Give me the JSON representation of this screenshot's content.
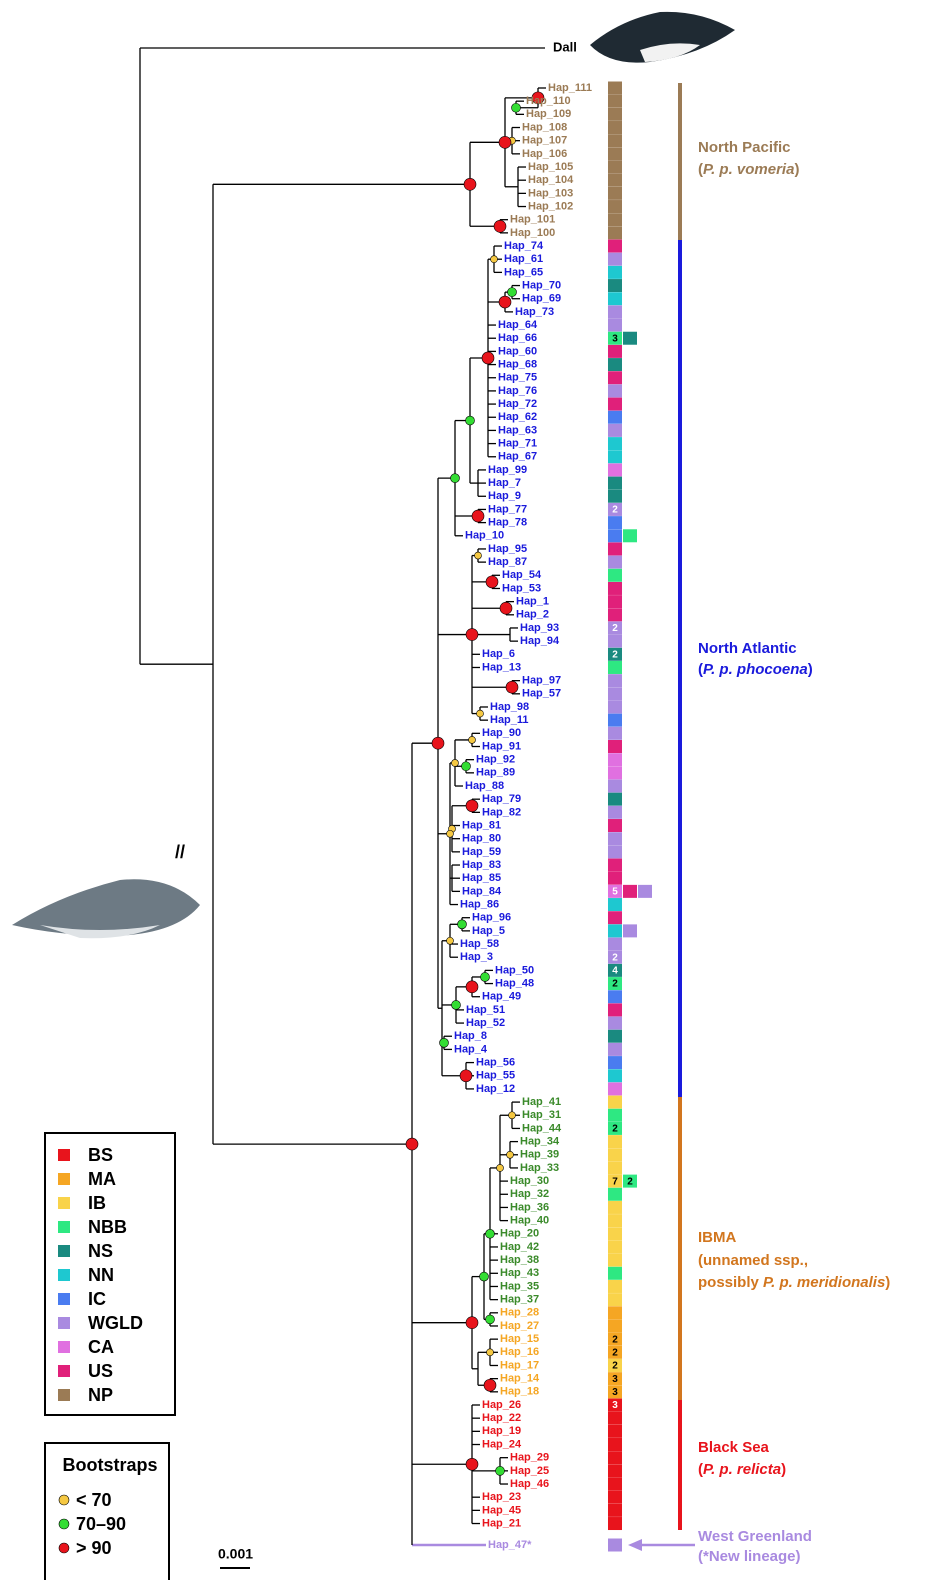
{
  "outgroup": "Dall",
  "groups": [
    {
      "color": "#9b7b55",
      "leaves": [
        {
          "label": "Hap_111",
          "boxes": [
            {
              "region": "NP"
            }
          ]
        },
        {
          "label": "Hap_110",
          "boxes": [
            {
              "region": "NP"
            }
          ]
        },
        {
          "label": "Hap_109",
          "boxes": [
            {
              "region": "NP"
            }
          ]
        },
        {
          "label": "Hap_108",
          "boxes": [
            {
              "region": "NP"
            }
          ]
        },
        {
          "label": "Hap_107",
          "boxes": [
            {
              "region": "NP"
            }
          ]
        },
        {
          "label": "Hap_106",
          "boxes": [
            {
              "region": "NP"
            }
          ]
        },
        {
          "label": "Hap_105",
          "boxes": [
            {
              "region": "NP"
            }
          ]
        },
        {
          "label": "Hap_104",
          "boxes": [
            {
              "region": "NP"
            }
          ]
        },
        {
          "label": "Hap_103",
          "boxes": [
            {
              "region": "NP"
            }
          ]
        },
        {
          "label": "Hap_102",
          "boxes": [
            {
              "region": "NP"
            }
          ]
        },
        {
          "label": "Hap_101",
          "boxes": [
            {
              "region": "NP"
            }
          ]
        },
        {
          "label": "Hap_100",
          "boxes": [
            {
              "region": "NP"
            }
          ]
        }
      ]
    },
    {
      "color": "#1a1adc",
      "leaves": [
        {
          "label": "Hap_74",
          "boxes": [
            {
              "region": "US"
            }
          ]
        },
        {
          "label": "Hap_61",
          "boxes": [
            {
              "region": "WGLD"
            }
          ]
        },
        {
          "label": "Hap_65",
          "boxes": [
            {
              "region": "NN"
            }
          ]
        },
        {
          "label": "Hap_70",
          "boxes": [
            {
              "region": "NS"
            }
          ]
        },
        {
          "label": "Hap_69",
          "boxes": [
            {
              "region": "NN"
            }
          ]
        },
        {
          "label": "Hap_73",
          "boxes": [
            {
              "region": "WGLD"
            }
          ]
        },
        {
          "label": "Hap_64",
          "boxes": [
            {
              "region": "WGLD"
            }
          ]
        },
        {
          "label": "Hap_66",
          "boxes": [
            {
              "region": "NBB",
              "count": 3
            },
            {
              "region": "NS"
            }
          ]
        },
        {
          "label": "Hap_60",
          "boxes": [
            {
              "region": "US"
            }
          ]
        },
        {
          "label": "Hap_68",
          "boxes": [
            {
              "region": "NS"
            }
          ]
        },
        {
          "label": "Hap_75",
          "boxes": [
            {
              "region": "US"
            }
          ]
        },
        {
          "label": "Hap_76",
          "boxes": [
            {
              "region": "WGLD"
            }
          ]
        },
        {
          "label": "Hap_72",
          "boxes": [
            {
              "region": "US"
            }
          ]
        },
        {
          "label": "Hap_62",
          "boxes": [
            {
              "region": "IC"
            }
          ]
        },
        {
          "label": "Hap_63",
          "boxes": [
            {
              "region": "WGLD"
            }
          ]
        },
        {
          "label": "Hap_71",
          "boxes": [
            {
              "region": "NN"
            }
          ]
        },
        {
          "label": "Hap_67",
          "boxes": [
            {
              "region": "NN"
            }
          ]
        },
        {
          "label": "Hap_99",
          "boxes": [
            {
              "region": "CA"
            }
          ]
        },
        {
          "label": "Hap_7",
          "boxes": [
            {
              "region": "NS"
            }
          ]
        },
        {
          "label": "Hap_9",
          "boxes": [
            {
              "region": "NS"
            }
          ]
        },
        {
          "label": "Hap_77",
          "boxes": [
            {
              "region": "WGLD",
              "count": 2
            }
          ]
        },
        {
          "label": "Hap_78",
          "boxes": [
            {
              "region": "IC"
            }
          ]
        },
        {
          "label": "Hap_10",
          "boxes": [
            {
              "region": "IC"
            },
            {
              "region": "NBB"
            }
          ]
        },
        {
          "label": "Hap_95",
          "boxes": [
            {
              "region": "US"
            }
          ]
        },
        {
          "label": "Hap_87",
          "boxes": [
            {
              "region": "WGLD"
            }
          ]
        },
        {
          "label": "Hap_54",
          "boxes": [
            {
              "region": "NBB"
            }
          ]
        },
        {
          "label": "Hap_53",
          "boxes": [
            {
              "region": "US"
            }
          ]
        },
        {
          "label": "Hap_1",
          "boxes": [
            {
              "region": "US"
            }
          ]
        },
        {
          "label": "Hap_2",
          "boxes": [
            {
              "region": "US"
            }
          ]
        },
        {
          "label": "Hap_93",
          "boxes": [
            {
              "region": "WGLD",
              "count": 2
            }
          ]
        },
        {
          "label": "Hap_94",
          "boxes": [
            {
              "region": "WGLD"
            }
          ]
        },
        {
          "label": "Hap_6",
          "boxes": [
            {
              "region": "NS",
              "count": 2
            }
          ]
        },
        {
          "label": "Hap_13",
          "boxes": [
            {
              "region": "NBB"
            }
          ]
        },
        {
          "label": "Hap_97",
          "boxes": [
            {
              "region": "WGLD"
            }
          ]
        },
        {
          "label": "Hap_57",
          "boxes": [
            {
              "region": "WGLD"
            }
          ]
        },
        {
          "label": "Hap_98",
          "boxes": [
            {
              "region": "WGLD"
            }
          ]
        },
        {
          "label": "Hap_11",
          "boxes": [
            {
              "region": "IC"
            }
          ]
        },
        {
          "label": "Hap_90",
          "boxes": [
            {
              "region": "WGLD"
            }
          ]
        },
        {
          "label": "Hap_91",
          "boxes": [
            {
              "region": "US"
            }
          ]
        },
        {
          "label": "Hap_92",
          "boxes": [
            {
              "region": "CA"
            }
          ]
        },
        {
          "label": "Hap_89",
          "boxes": [
            {
              "region": "CA"
            }
          ]
        },
        {
          "label": "Hap_88",
          "boxes": [
            {
              "region": "WGLD"
            }
          ]
        },
        {
          "label": "Hap_79",
          "boxes": [
            {
              "region": "NS"
            }
          ]
        },
        {
          "label": "Hap_82",
          "boxes": [
            {
              "region": "WGLD"
            }
          ]
        },
        {
          "label": "Hap_81",
          "boxes": [
            {
              "region": "US"
            }
          ]
        },
        {
          "label": "Hap_80",
          "boxes": [
            {
              "region": "WGLD"
            }
          ]
        },
        {
          "label": "Hap_59",
          "boxes": [
            {
              "region": "WGLD"
            }
          ]
        },
        {
          "label": "Hap_83",
          "boxes": [
            {
              "region": "US"
            }
          ]
        },
        {
          "label": "Hap_85",
          "boxes": [
            {
              "region": "US"
            }
          ]
        },
        {
          "label": "Hap_84",
          "boxes": [
            {
              "region": "CA",
              "count": 5
            },
            {
              "region": "US"
            },
            {
              "region": "WGLD"
            }
          ]
        },
        {
          "label": "Hap_86",
          "boxes": [
            {
              "region": "NN"
            }
          ]
        },
        {
          "label": "Hap_96",
          "boxes": [
            {
              "region": "US"
            }
          ]
        },
        {
          "label": "Hap_5",
          "boxes": [
            {
              "region": "NN"
            },
            {
              "region": "WGLD"
            }
          ]
        },
        {
          "label": "Hap_58",
          "boxes": [
            {
              "region": "WGLD"
            }
          ]
        },
        {
          "label": "Hap_3",
          "boxes": [
            {
              "region": "WGLD",
              "count": 2
            }
          ]
        },
        {
          "label": "Hap_50",
          "boxes": [
            {
              "region": "NS",
              "count": 4
            }
          ]
        },
        {
          "label": "Hap_48",
          "boxes": [
            {
              "region": "NBB",
              "count": 2
            }
          ]
        },
        {
          "label": "Hap_49",
          "boxes": [
            {
              "region": "IC"
            }
          ]
        },
        {
          "label": "Hap_51",
          "boxes": [
            {
              "region": "US"
            }
          ]
        },
        {
          "label": "Hap_52",
          "boxes": [
            {
              "region": "WGLD"
            }
          ]
        },
        {
          "label": "Hap_8",
          "boxes": [
            {
              "region": "NS"
            }
          ]
        },
        {
          "label": "Hap_4",
          "boxes": [
            {
              "region": "WGLD"
            }
          ]
        },
        {
          "label": "Hap_56",
          "boxes": [
            {
              "region": "IC"
            }
          ]
        },
        {
          "label": "Hap_55",
          "boxes": [
            {
              "region": "NN"
            }
          ]
        },
        {
          "label": "Hap_12",
          "boxes": [
            {
              "region": "CA"
            }
          ]
        }
      ]
    },
    {
      "color": "#3a8a2a",
      "leaves": [
        {
          "label": "Hap_41",
          "boxes": [
            {
              "region": "IB"
            }
          ]
        },
        {
          "label": "Hap_31",
          "boxes": [
            {
              "region": "NBB"
            }
          ]
        },
        {
          "label": "Hap_44",
          "boxes": [
            {
              "region": "NBB",
              "count": 2
            }
          ]
        },
        {
          "label": "Hap_34",
          "boxes": [
            {
              "region": "IB"
            }
          ]
        },
        {
          "label": "Hap_39",
          "boxes": [
            {
              "region": "IB"
            }
          ]
        },
        {
          "label": "Hap_33",
          "boxes": [
            {
              "region": "IB"
            }
          ]
        },
        {
          "label": "Hap_30",
          "boxes": [
            {
              "region": "IB",
              "count": 7
            },
            {
              "region": "NBB",
              "count": 2
            }
          ]
        },
        {
          "label": "Hap_32",
          "boxes": [
            {
              "region": "NBB"
            }
          ]
        },
        {
          "label": "Hap_36",
          "boxes": [
            {
              "region": "IB"
            }
          ]
        },
        {
          "label": "Hap_40",
          "boxes": [
            {
              "region": "IB"
            }
          ]
        },
        {
          "label": "Hap_20",
          "boxes": [
            {
              "region": "IB"
            }
          ]
        },
        {
          "label": "Hap_42",
          "boxes": [
            {
              "region": "IB"
            }
          ]
        },
        {
          "label": "Hap_38",
          "boxes": [
            {
              "region": "IB"
            }
          ]
        },
        {
          "label": "Hap_43",
          "boxes": [
            {
              "region": "NBB"
            }
          ]
        },
        {
          "label": "Hap_35",
          "boxes": [
            {
              "region": "IB"
            }
          ]
        },
        {
          "label": "Hap_37",
          "boxes": [
            {
              "region": "IB"
            }
          ]
        }
      ]
    },
    {
      "color": "#f5a623",
      "leaves": [
        {
          "label": "Hap_28",
          "boxes": [
            {
              "region": "MA"
            }
          ]
        },
        {
          "label": "Hap_27",
          "boxes": [
            {
              "region": "MA"
            }
          ]
        },
        {
          "label": "Hap_15",
          "boxes": [
            {
              "region": "MA",
              "count": 2
            }
          ]
        },
        {
          "label": "Hap_16",
          "boxes": [
            {
              "region": "MA",
              "count": 2
            }
          ]
        },
        {
          "label": "Hap_17",
          "boxes": [
            {
              "region": "IB",
              "count": 2
            }
          ]
        },
        {
          "label": "Hap_14",
          "boxes": [
            {
              "region": "MA",
              "count": 3
            }
          ]
        },
        {
          "label": "Hap_18",
          "boxes": [
            {
              "region": "MA",
              "count": 3
            }
          ]
        }
      ]
    },
    {
      "color": "#e8141c",
      "leaves": [
        {
          "label": "Hap_26",
          "boxes": [
            {
              "region": "BS",
              "count": 3
            }
          ]
        },
        {
          "label": "Hap_22",
          "boxes": [
            {
              "region": "BS"
            }
          ]
        },
        {
          "label": "Hap_19",
          "boxes": [
            {
              "region": "BS"
            }
          ]
        },
        {
          "label": "Hap_24",
          "boxes": [
            {
              "region": "BS"
            }
          ]
        },
        {
          "label": "Hap_29",
          "boxes": [
            {
              "region": "BS"
            }
          ]
        },
        {
          "label": "Hap_25",
          "boxes": [
            {
              "region": "BS"
            }
          ]
        },
        {
          "label": "Hap_46",
          "boxes": [
            {
              "region": "BS"
            }
          ]
        },
        {
          "label": "Hap_23",
          "boxes": [
            {
              "region": "BS"
            }
          ]
        },
        {
          "label": "Hap_45",
          "boxes": [
            {
              "region": "BS"
            }
          ]
        },
        {
          "label": "Hap_21",
          "boxes": [
            {
              "region": "BS"
            }
          ]
        }
      ]
    },
    {
      "color": "#a98ae0",
      "leaves": [
        {
          "label": "Hap_47*",
          "boxes": [
            {
              "region": "WGLD"
            }
          ]
        }
      ]
    }
  ],
  "clades": [
    {
      "color": "#9b7b55",
      "lines": [
        [
          {
            "text": "North Pacific"
          }
        ],
        [
          {
            "text": "("
          },
          {
            "text": "P. p. vomeria",
            "italic": true
          },
          {
            "text": ")"
          }
        ]
      ]
    },
    {
      "color": "#1a1adc",
      "lines": [
        [
          {
            "text": "North Atlantic"
          }
        ],
        [
          {
            "text": "("
          },
          {
            "text": "P. p. phocoena",
            "italic": true
          },
          {
            "text": ")"
          }
        ]
      ]
    },
    {
      "color": "#d2761e",
      "lines": [
        [
          {
            "text": "IBMA"
          }
        ],
        [
          {
            "text": "(unnamed ssp.,"
          }
        ],
        [
          {
            "text": "possibly "
          },
          {
            "text": "P. p. meridionalis",
            "italic": true
          },
          {
            "text": ")"
          }
        ]
      ]
    },
    {
      "color": "#e8141c",
      "lines": [
        [
          {
            "text": "Black Sea"
          }
        ],
        [
          {
            "text": "("
          },
          {
            "text": "P. p. relicta",
            "italic": true
          },
          {
            "text": ")"
          }
        ]
      ]
    },
    {
      "color": "#a98ae0",
      "lines": [
        [
          {
            "text": "West Greenland"
          }
        ],
        [
          {
            "text": "(*New lineage)"
          }
        ]
      ]
    }
  ],
  "legend": [
    {
      "code": "BS",
      "color": "#e8141c"
    },
    {
      "code": "MA",
      "color": "#f5a623"
    },
    {
      "code": "IB",
      "color": "#f9d34a"
    },
    {
      "code": "NBB",
      "color": "#2ee882"
    },
    {
      "code": "NS",
      "color": "#1a8a80"
    },
    {
      "code": "NN",
      "color": "#1ec8d0"
    },
    {
      "code": "IC",
      "color": "#4a7cf0"
    },
    {
      "code": "WGLD",
      "color": "#a98ae0"
    },
    {
      "code": "CA",
      "color": "#e070e0"
    },
    {
      "code": "US",
      "color": "#e0207a"
    },
    {
      "code": "NP",
      "color": "#9b7b55"
    }
  ],
  "bootstraps": {
    "title": "Bootstraps",
    "items": [
      {
        "label": "< 70",
        "color": "#f5c842"
      },
      {
        "label": "70–90",
        "color": "#33dd33"
      },
      {
        "label": "> 90",
        "color": "#e8141c"
      }
    ]
  },
  "scale": "0.001"
}
